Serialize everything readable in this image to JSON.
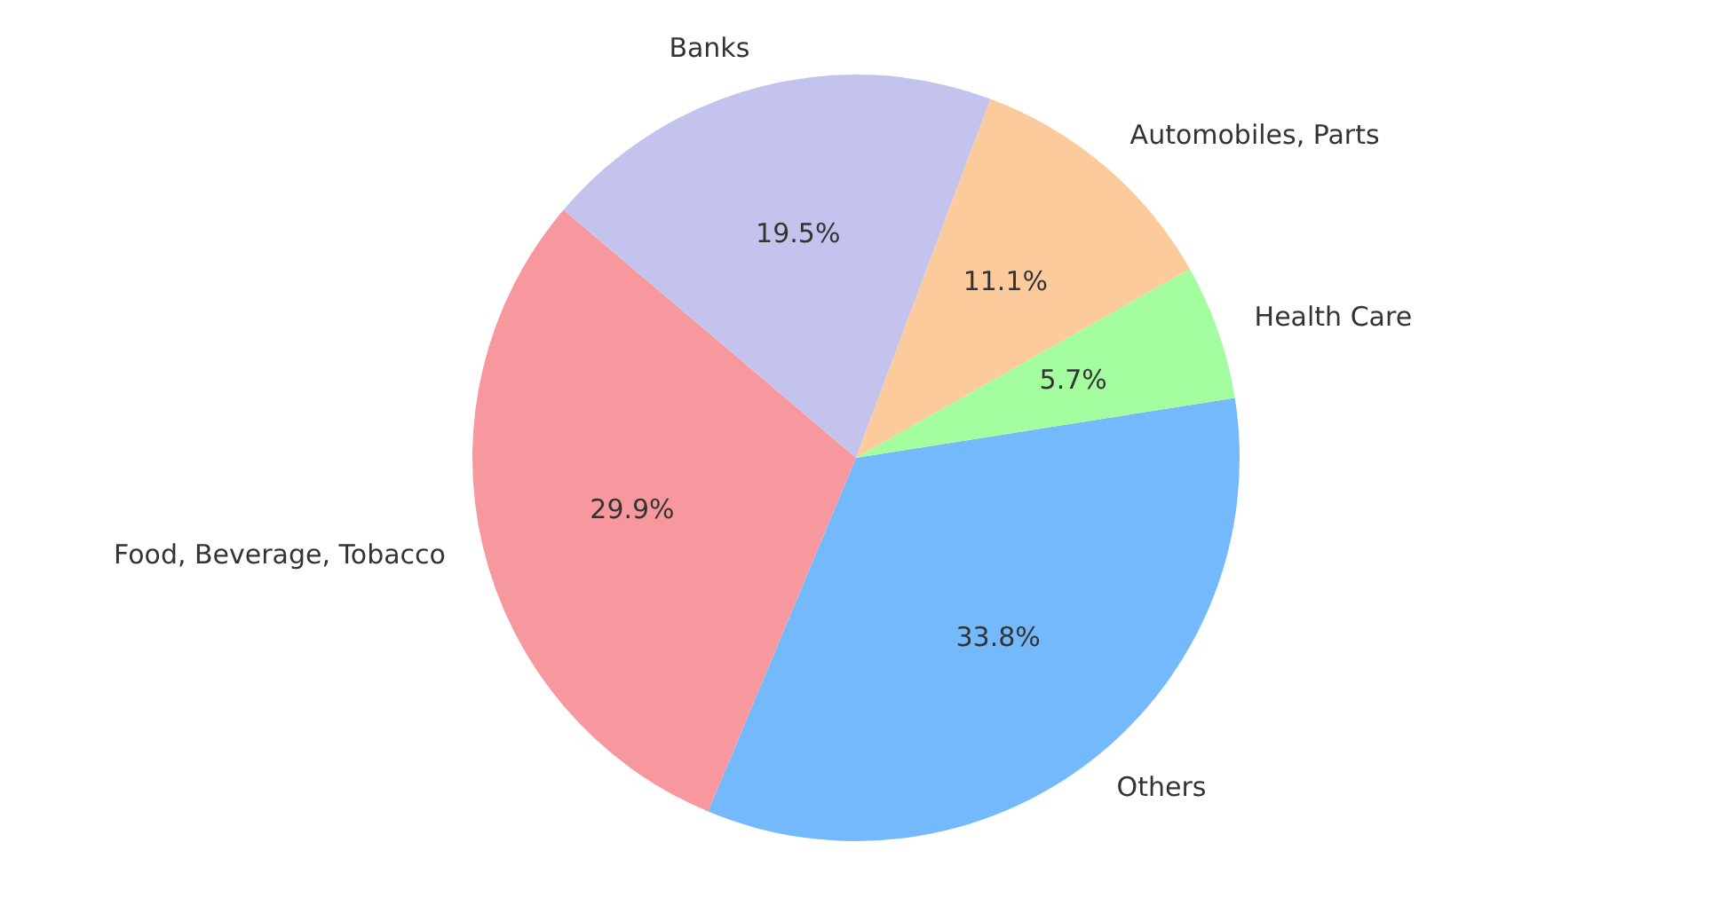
{
  "chart_data": {
    "type": "pie",
    "categories": [
      "Others",
      "Food, Beverage, Tobacco",
      "Banks",
      "Automobiles, Parts",
      "Health Care"
    ],
    "values": [
      33.8,
      29.9,
      19.5,
      11.1,
      5.7
    ],
    "colors": [
      "#74b9fb",
      "#f6989d",
      "#c3c3ee",
      "#fbcb9c",
      "#a3fd9e"
    ],
    "value_labels": [
      "33.8%",
      "29.9%",
      "19.5%",
      "11.1%",
      "5.7%"
    ],
    "legend": false
  }
}
